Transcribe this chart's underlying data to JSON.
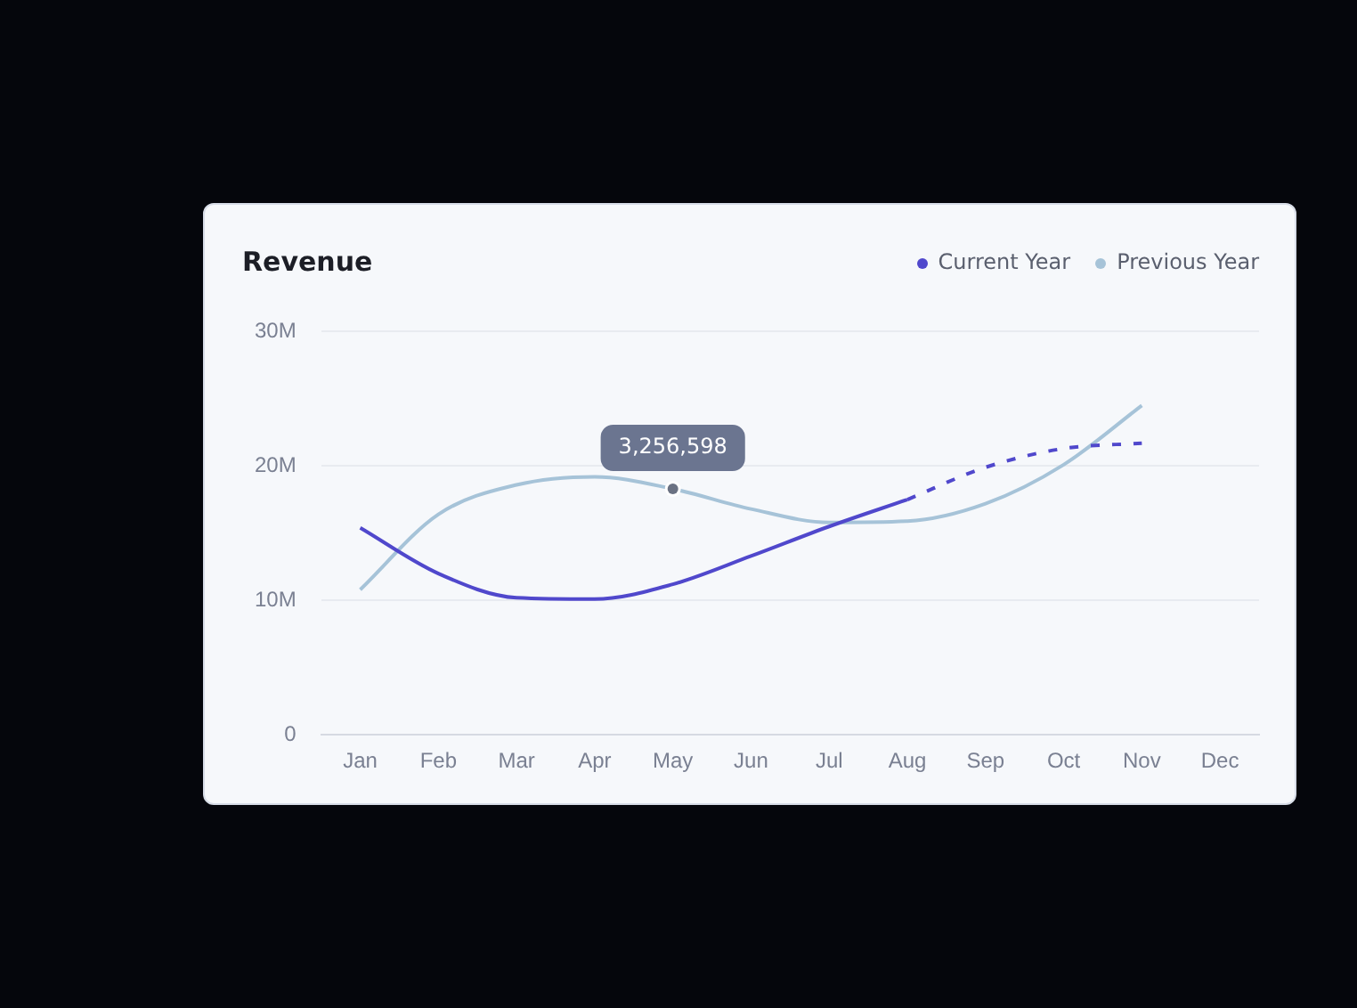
{
  "chart_data": {
    "type": "line",
    "title": "Revenue",
    "categories": [
      "Jan",
      "Feb",
      "Mar",
      "Apr",
      "May",
      "Jun",
      "Jul",
      "Aug",
      "Sep",
      "Oct",
      "Nov",
      "Dec"
    ],
    "series": [
      {
        "name": "Current Year",
        "color": "#5048cc",
        "values": [
          15.4,
          12.0,
          10.2,
          10.1,
          11.2,
          13.3,
          15.5,
          17.5,
          null,
          null,
          null,
          null
        ]
      },
      {
        "color": "#5048cc",
        "line_style": "dashed",
        "values": [
          null,
          null,
          null,
          null,
          null,
          null,
          null,
          17.5,
          19.9,
          21.3,
          21.7,
          null
        ]
      },
      {
        "name": "Previous Year",
        "color": "#a6c3d8",
        "values": [
          10.8,
          16.4,
          18.6,
          19.2,
          18.3,
          16.8,
          15.8,
          15.9,
          17.2,
          20.1,
          24.5,
          null
        ]
      }
    ],
    "ylim": [
      0,
      30
    ],
    "yticks": [
      {
        "value": 0,
        "label": "0"
      },
      {
        "value": 10,
        "label": "10M"
      },
      {
        "value": 20,
        "label": "20M"
      },
      {
        "value": 30,
        "label": "30M"
      }
    ],
    "grid": "y",
    "legend": "top right",
    "marker": "none",
    "annotations": [
      {
        "text": "3,256,598",
        "x": "May",
        "y": 18.3
      }
    ]
  }
}
